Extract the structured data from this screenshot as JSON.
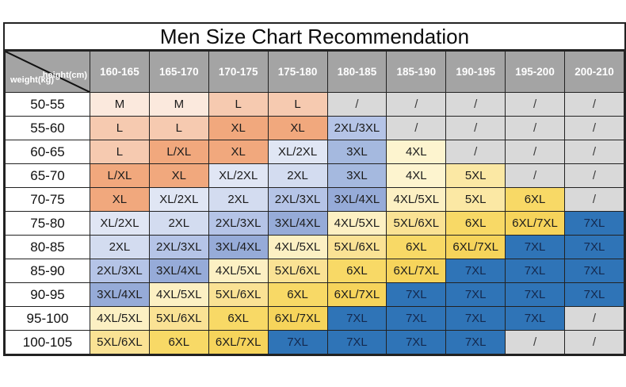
{
  "chart_data": {
    "type": "table",
    "title": "Men Size Chart Recommendation",
    "corner_labels": {
      "row_axis": "weight(kg)",
      "col_axis": "height(cm)"
    },
    "columns": [
      "160-165",
      "165-170",
      "170-175",
      "175-180",
      "180-185",
      "185-190",
      "190-195",
      "195-200",
      "200-210"
    ],
    "rows": [
      {
        "label": "50-55",
        "cells": [
          "M",
          "M",
          "L",
          "L",
          "/",
          "/",
          "/",
          "/",
          "/"
        ]
      },
      {
        "label": "55-60",
        "cells": [
          "L",
          "L",
          "XL",
          "XL",
          "2XL/3XL",
          "/",
          "/",
          "/",
          "/"
        ]
      },
      {
        "label": "60-65",
        "cells": [
          "L",
          "L/XL",
          "XL",
          "XL/2XL",
          "3XL",
          "4XL",
          "/",
          "/",
          "/"
        ]
      },
      {
        "label": "65-70",
        "cells": [
          "L/XL",
          "XL",
          "XL/2XL",
          "2XL",
          "3XL",
          "4XL",
          "5XL",
          "/",
          "/"
        ]
      },
      {
        "label": "70-75",
        "cells": [
          "XL",
          "XL/2XL",
          "2XL",
          "2XL/3XL",
          "3XL/4XL",
          "4XL/5XL",
          "5XL",
          "6XL",
          "/"
        ]
      },
      {
        "label": "75-80",
        "cells": [
          "XL/2XL",
          "2XL",
          "2XL/3XL",
          "3XL/4XL",
          "4XL/5XL",
          "5XL/6XL",
          "6XL",
          "6XL/7XL",
          "7XL"
        ]
      },
      {
        "label": "80-85",
        "cells": [
          "2XL",
          "2XL/3XL",
          "3XL/4XL",
          "4XL/5XL",
          "5XL/6XL",
          "6XL",
          "6XL/7XL",
          "7XL",
          "7XL"
        ]
      },
      {
        "label": "85-90",
        "cells": [
          "2XL/3XL",
          "3XL/4XL",
          "4XL/5XL",
          "5XL/6XL",
          "6XL",
          "6XL/7XL",
          "7XL",
          "7XL",
          "7XL"
        ]
      },
      {
        "label": "90-95",
        "cells": [
          "3XL/4XL",
          "4XL/5XL",
          "5XL/6XL",
          "6XL",
          "6XL/7XL",
          "7XL",
          "7XL",
          "7XL",
          "7XL"
        ]
      },
      {
        "label": "95-100",
        "cells": [
          "4XL/5XL",
          "5XL/6XL",
          "6XL",
          "6XL/7XL",
          "7XL",
          "7XL",
          "7XL",
          "7XL",
          "/"
        ]
      },
      {
        "label": "100-105",
        "cells": [
          "5XL/6XL",
          "6XL",
          "6XL/7XL",
          "7XL",
          "7XL",
          "7XL",
          "7XL",
          "/",
          "/"
        ]
      }
    ]
  },
  "colors": {
    "header_bg": "#a4a4a4",
    "header_text": "#ffffff",
    "border": "#222222",
    "cell_text": "#1c1c1c",
    "blue_cell_text": "#14294e",
    "slash_text": "#3a3a3a",
    "size_fill": {
      "M": "#fbe9dd",
      "L": "#f6cab0",
      "L/XL": "#f1a87d",
      "XL": "#f1a87d",
      "XL/2XL": "#e0e6f4",
      "2XL": "#d3dcf0",
      "2XL/3XL": "#b5c4e7",
      "3XL": "#a5b9df",
      "3XL/4XL": "#96abd8",
      "4XL": "#fdf4cf",
      "4XL/5XL": "#fcf0c3",
      "5XL": "#fbe8a4",
      "5XL/6XL": "#fae294",
      "6XL": "#f8d966",
      "6XL/7XL": "#f6d45b",
      "7XL": "#2f74b7",
      "/": "#d9d9d9"
    }
  }
}
